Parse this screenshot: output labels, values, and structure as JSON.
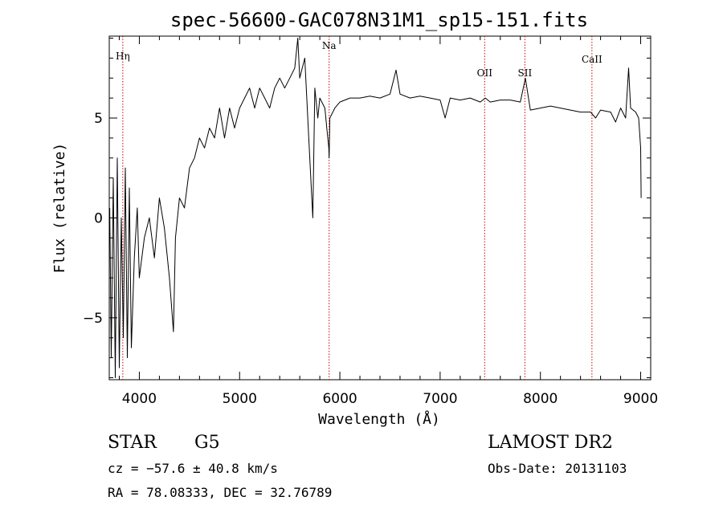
{
  "chart_data": {
    "type": "line",
    "title": "spec-56600-GAC078N31M1_sp15-151.fits",
    "xlabel": "Wavelength (Å)",
    "ylabel": "Flux (relative)",
    "xlim": [
      3700,
      9100
    ],
    "ylim": [
      -8.1,
      9.1
    ],
    "x_ticks": [
      4000,
      5000,
      6000,
      7000,
      8000,
      9000
    ],
    "y_ticks": [
      -5,
      0,
      5
    ],
    "y_tick_labels": [
      "−5",
      "0",
      "5"
    ],
    "grid": false,
    "line_color": "#000000",
    "marker_color": "#cc0000",
    "spectral_lines": [
      {
        "label": "Hη",
        "wavelength": 3835
      },
      {
        "label": "Na",
        "wavelength": 5893
      },
      {
        "label": "OII",
        "wavelength": 7444
      },
      {
        "label": "SII",
        "wavelength": 7845
      },
      {
        "label": "CaII",
        "wavelength": 8514
      }
    ],
    "series": [
      {
        "x": [
          3705,
          3720,
          3740,
          3760,
          3780,
          3800,
          3820,
          3840,
          3860,
          3880,
          3900,
          3920,
          3950,
          3980,
          4000,
          4050,
          4100,
          4150,
          4200,
          4250,
          4300,
          4340,
          4360,
          4400,
          4450,
          4500,
          4550,
          4600,
          4650,
          4700,
          4750,
          4800,
          4850,
          4900,
          4950,
          5000,
          5050,
          5100,
          5150,
          5200,
          5250,
          5300,
          5350,
          5400,
          5450,
          5500,
          5550,
          5580,
          5600,
          5650,
          5700,
          5730,
          5750,
          5780,
          5800,
          5850,
          5870,
          5890,
          5893,
          5900,
          5950,
          6000,
          6100,
          6200,
          6300,
          6400,
          6500,
          6560,
          6600,
          6700,
          6800,
          6900,
          7000,
          7050,
          7100,
          7200,
          7300,
          7400,
          7450,
          7500,
          7600,
          7700,
          7800,
          7850,
          7900,
          8000,
          8100,
          8200,
          8300,
          8400,
          8500,
          8550,
          8600,
          8700,
          8750,
          8800,
          8850,
          8880,
          8900,
          8950,
          8980,
          9000,
          9005
        ],
        "y": [
          0.5,
          -7,
          2.0,
          -8.0,
          3.0,
          -7.5,
          0.0,
          -6.0,
          2.5,
          -7.0,
          1.5,
          -6.5,
          -2.0,
          0.5,
          -3.0,
          -1.0,
          0.0,
          -2.0,
          1.0,
          -0.5,
          -3.0,
          -5.7,
          -1.0,
          1.0,
          0.5,
          2.5,
          3.0,
          4.0,
          3.5,
          4.5,
          4.0,
          5.5,
          4.0,
          5.5,
          4.5,
          5.5,
          6.0,
          6.5,
          5.5,
          6.5,
          6.0,
          5.5,
          6.5,
          7.0,
          6.5,
          7.0,
          7.5,
          9.0,
          7.0,
          8.0,
          3.0,
          0.0,
          6.5,
          5.0,
          6.0,
          5.5,
          4.5,
          3.5,
          3.0,
          5.0,
          5.5,
          5.8,
          6.0,
          6.0,
          6.1,
          6.0,
          6.2,
          7.4,
          6.2,
          6.0,
          6.1,
          6.0,
          5.9,
          5.0,
          6.0,
          5.9,
          6.0,
          5.8,
          6.0,
          5.8,
          5.9,
          5.9,
          5.8,
          7.0,
          5.4,
          5.5,
          5.6,
          5.5,
          5.4,
          5.3,
          5.3,
          5.0,
          5.4,
          5.3,
          4.8,
          5.5,
          5.0,
          7.5,
          5.5,
          5.3,
          5.0,
          3.5,
          1.0
        ]
      }
    ]
  },
  "footer": {
    "object_class": "STAR",
    "subclass": "G5",
    "survey": "LAMOST DR2",
    "velocity": "cz = −57.6 ± 40.8 km/s",
    "obs_date": "Obs-Date: 20131103",
    "coords": "RA =  78.08333, DEC =  32.76789"
  }
}
